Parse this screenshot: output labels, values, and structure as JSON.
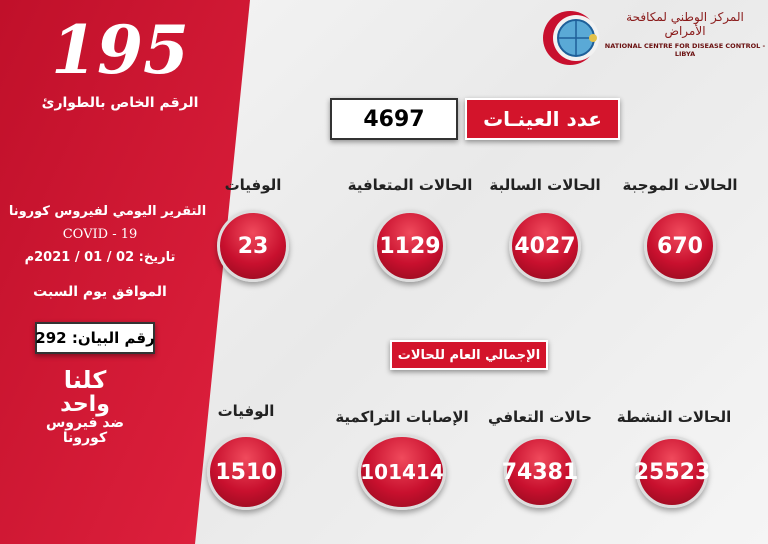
{
  "colors": {
    "brand_red": "#d3142b",
    "background": "#f2f2f2"
  },
  "sidebar": {
    "hotline_number": "195",
    "hotline_label": "الرقم الخاص بالطوارئ",
    "report_title": "التقرير اليومي لفيروس كورونا",
    "covid": "COVID - 19",
    "date": "تاريخ: 02 / 01 / 2021م",
    "weekday": "الموافق يوم السبت",
    "statement": "رقم البيان: 292",
    "slogan": [
      "كلنا",
      "واحد",
      "ضد فيروس",
      "كورونا"
    ]
  },
  "logo": {
    "arabic": "المركز الوطني لمكافحة الأمراض",
    "english": "NATIONAL CENTRE FOR DISEASE CONTROL - LIBYA",
    "icon": "ncdc-crescent-globe-logo"
  },
  "samples": {
    "label": "عدد العينـات",
    "value": "4697"
  },
  "daily": [
    {
      "label": "الحالات الموجبة",
      "value": "670"
    },
    {
      "label": "الحالات السالبة",
      "value": "4027"
    },
    {
      "label": "الحالات المتعافية",
      "value": "1129"
    },
    {
      "label": "الوفيات",
      "value": "23"
    }
  ],
  "totals_label": "الإجمالي العام للحالات",
  "totals": [
    {
      "label": "الحالات النشطة",
      "value": "25523"
    },
    {
      "label": "حالات التعافي",
      "value": "74381"
    },
    {
      "label": "الإصابات التراكمية",
      "value": "101414"
    },
    {
      "label": "الوفيات",
      "value": "1510"
    }
  ]
}
